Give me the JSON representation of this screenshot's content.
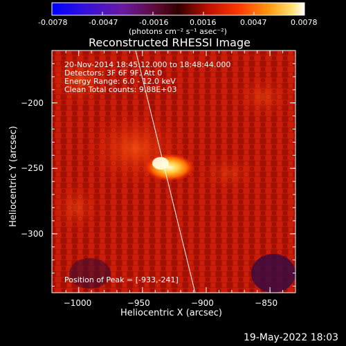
{
  "colorbar": {
    "tick_labels": [
      "-0.0078",
      "-0.0047",
      "-0.0016",
      "0.0016",
      "0.0047",
      "0.0078"
    ],
    "unit_label": "(photons cm⁻² s⁻¹ asec⁻²)"
  },
  "image": {
    "title": "Reconstructed RHESSI Image",
    "info_lines": [
      "20-Nov-2014 18:45:12.000 to 18:48:44.000",
      "Detectors: 3F 6F 9F, Att 0",
      "Energy Range: 6.0 - 12.0 keV",
      "Clean    Total counts: 9.88E+03"
    ],
    "peak_label": "Position of Peak = [-933,-241]",
    "xlabel": "Heliocentric X (arcsec)",
    "ylabel": "Heliocentric Y (arcsec)",
    "x_ticks": [
      "−1000",
      "−950",
      "−900",
      "−850"
    ],
    "y_ticks": [
      "−200",
      "−250",
      "−300"
    ],
    "x_tick_values": [
      -1000,
      -950,
      -900,
      -850
    ],
    "y_tick_values": [
      -200,
      -250,
      -300
    ],
    "xlim": [
      -1021,
      -830
    ],
    "ylim": [
      -345,
      -160
    ],
    "peak_position": [
      -933,
      -241
    ],
    "colors": {
      "background": "#000000",
      "text": "#ffffff"
    }
  },
  "footer": {
    "timestamp": "19-May-2022 18:03"
  }
}
